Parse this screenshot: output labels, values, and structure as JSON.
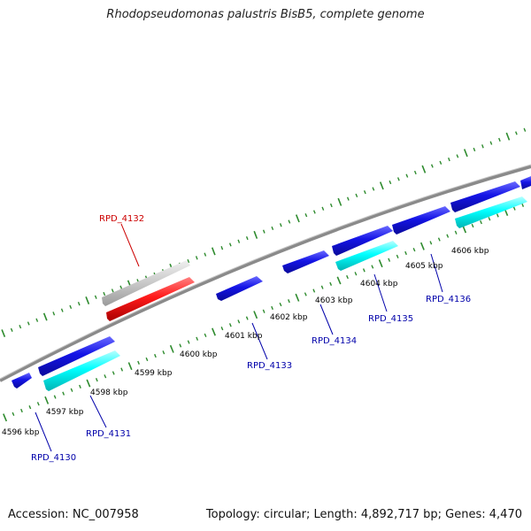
{
  "title": "Rhodopseudomonas palustris BisB5, complete genome",
  "footer": {
    "accession": "Accession: NC_007958",
    "topology": "Topology: circular; Length: 4,892,717 bp; Genes: 4,470"
  },
  "colors": {
    "backbone": "#8a8a8a",
    "tick": "#2e8b2e",
    "forward_gene": "#1414e6",
    "cds_highlight": "#00ffff",
    "selected_gene": "#ff1a1a",
    "selected_gene_shadow": "#c8c8c8",
    "label_blue": "#0000aa",
    "label_red": "#cc0000"
  },
  "scale_labels": [
    "4596 kbp",
    "4597 kbp",
    "4598 kbp",
    "4599 kbp",
    "4600 kbp",
    "4601 kbp",
    "4602 kbp",
    "4603 kbp",
    "4604 kbp",
    "4605 kbp",
    "4606 kbp"
  ],
  "gene_labels": [
    {
      "id": "RPD_4130",
      "text": "RPD_4130"
    },
    {
      "id": "RPD_4131",
      "text": "RPD_4131"
    },
    {
      "id": "RPD_4132",
      "text": "RPD_4132"
    },
    {
      "id": "RPD_4133",
      "text": "RPD_4133"
    },
    {
      "id": "RPD_4134",
      "text": "RPD_4134"
    },
    {
      "id": "RPD_4135",
      "text": "RPD_4135"
    },
    {
      "id": "RPD_4136",
      "text": "RPD_4136"
    }
  ]
}
